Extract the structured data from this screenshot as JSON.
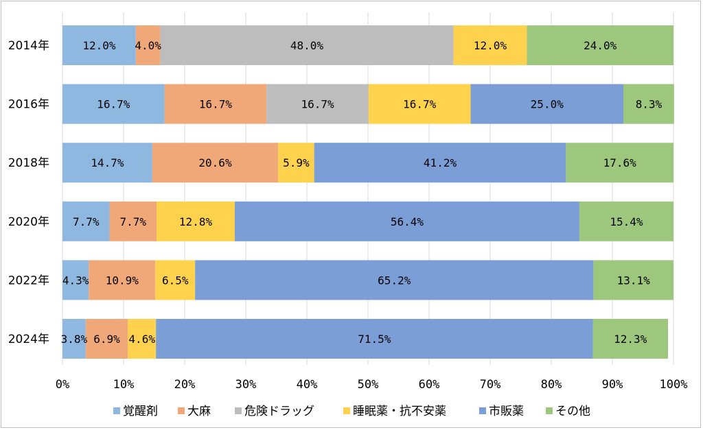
{
  "chart_data": {
    "type": "bar",
    "orientation": "horizontal",
    "stacked": "percent",
    "categories": [
      "2014年",
      "2016年",
      "2018年",
      "2020年",
      "2022年",
      "2024年"
    ],
    "series": [
      {
        "name": "覚醒剤",
        "color": "#8fb8e0",
        "values": [
          12.0,
          16.7,
          14.7,
          7.7,
          4.3,
          3.8
        ]
      },
      {
        "name": "大麻",
        "color": "#f0a878",
        "values": [
          4.0,
          16.7,
          20.6,
          7.7,
          10.9,
          6.9
        ]
      },
      {
        "name": "危険ドラッグ",
        "color": "#bdbdbd",
        "values": [
          48.0,
          16.7,
          null,
          null,
          null,
          null
        ]
      },
      {
        "name": "睡眠薬・抗不安薬",
        "color": "#ffd24d",
        "values": [
          12.0,
          16.7,
          5.9,
          12.8,
          6.5,
          4.6
        ]
      },
      {
        "name": "市販薬",
        "color": "#7b9ed6",
        "values": [
          null,
          25.0,
          41.2,
          56.4,
          65.2,
          71.5
        ]
      },
      {
        "name": "その他",
        "color": "#9cc77c",
        "values": [
          24.0,
          8.3,
          17.6,
          15.4,
          13.1,
          12.3
        ]
      }
    ],
    "data_labels": [
      [
        "12.0%",
        "4.0%",
        "48.0%",
        "12.0%",
        "",
        "24.0%"
      ],
      [
        "16.7%",
        "16.7%",
        "16.7%",
        "16.7%",
        "25.0%",
        "8.3%"
      ],
      [
        "14.7%",
        "20.6%",
        "",
        "5.9%",
        "41.2%",
        "17.6%"
      ],
      [
        "7.7%",
        "7.7%",
        "",
        "12.8%",
        "56.4%",
        "15.4%"
      ],
      [
        "4.3%",
        "10.9%",
        "",
        "6.5%",
        "65.2%",
        "13.1%"
      ],
      [
        "3.8%",
        "6.9%",
        "",
        "4.6%",
        "71.5%",
        "12.3%"
      ]
    ],
    "xlim": [
      0,
      100
    ],
    "xticks": [
      0,
      10,
      20,
      30,
      40,
      50,
      60,
      70,
      80,
      90,
      100
    ],
    "xtick_labels": [
      "0%",
      "10%",
      "20%",
      "30%",
      "40%",
      "50%",
      "60%",
      "70%",
      "80%",
      "90%",
      "100%"
    ],
    "grid": true,
    "legend": "bottom",
    "title": "",
    "xlabel": "",
    "ylabel": ""
  }
}
